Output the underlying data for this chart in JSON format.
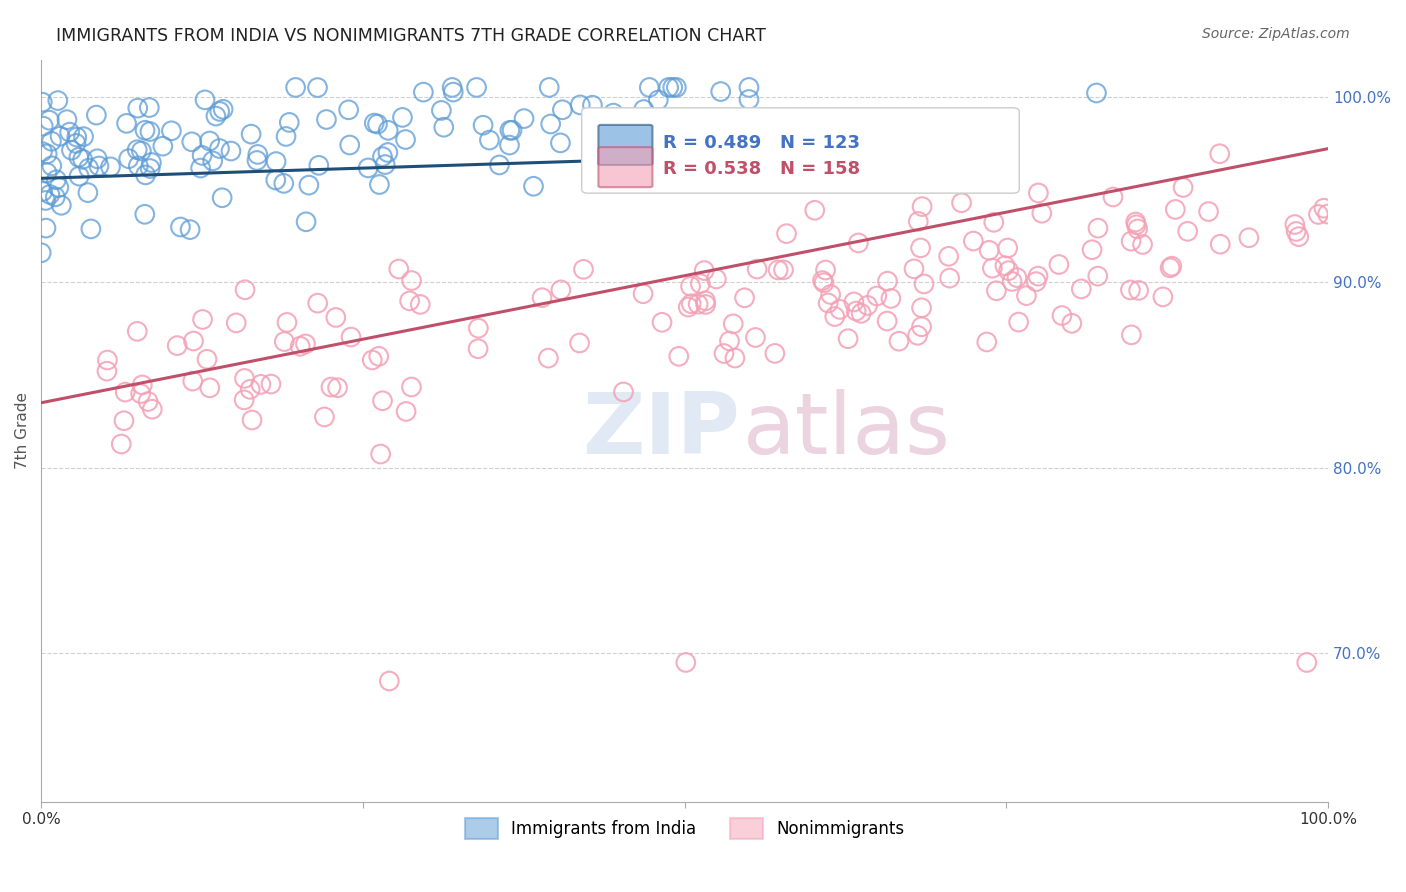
{
  "title": "IMMIGRANTS FROM INDIA VS NONIMMIGRANTS 7TH GRADE CORRELATION CHART",
  "source": "Source: ZipAtlas.com",
  "ylabel": "7th Grade",
  "blue_R": 0.489,
  "blue_N": 123,
  "pink_R": 0.538,
  "pink_N": 158,
  "blue_color": "#5b9bd5",
  "pink_color": "#f4a0b5",
  "blue_line_color": "#1f4e79",
  "pink_line_color": "#c0506a",
  "right_axis_color": "#4472c4",
  "background_color": "#ffffff",
  "grid_color": "#d0d0d0",
  "legend_label_blue": "Immigrants from India",
  "legend_label_pink": "Nonimmigrants",
  "right_ytick_labels": [
    "70.0%",
    "80.0%",
    "90.0%",
    "100.0%"
  ],
  "right_ytick_values": [
    0.7,
    0.8,
    0.9,
    1.0
  ],
  "xlim": [
    0.0,
    1.0
  ],
  "ylim": [
    0.62,
    1.02
  ],
  "blue_scatter_seed": 42,
  "pink_scatter_seed": 99
}
